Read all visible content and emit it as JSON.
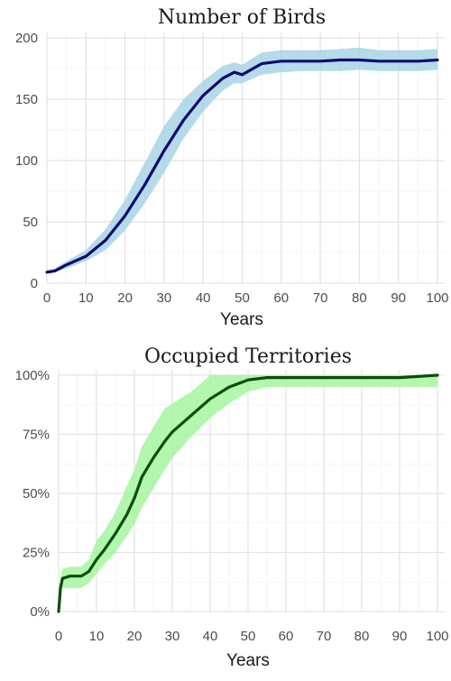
{
  "chart_data": [
    {
      "type": "line",
      "title": "Number of Birds",
      "xlabel": "Years",
      "ylabel": "",
      "xlim": [
        0,
        100
      ],
      "ylim": [
        0,
        200
      ],
      "x_ticks": [
        "0",
        "10",
        "20",
        "30",
        "40",
        "50",
        "60",
        "70",
        "80",
        "90",
        "100"
      ],
      "y_ticks": [
        "0",
        "50",
        "100",
        "150",
        "200"
      ],
      "grid": true,
      "colors": {
        "line": "#0b0b6f",
        "band": "#a8d3e6"
      },
      "x": [
        0,
        2,
        5,
        10,
        15,
        20,
        25,
        30,
        35,
        40,
        45,
        48,
        50,
        55,
        60,
        65,
        70,
        75,
        80,
        85,
        90,
        95,
        100
      ],
      "mean": [
        9,
        10,
        15,
        22,
        35,
        55,
        80,
        108,
        133,
        153,
        167,
        172,
        170,
        179,
        181,
        181,
        181,
        182,
        182,
        181,
        181,
        181,
        182
      ],
      "lower": [
        8,
        9,
        12,
        18,
        27,
        43,
        65,
        90,
        118,
        140,
        157,
        163,
        163,
        170,
        172,
        173,
        173,
        173,
        174,
        173,
        173,
        173,
        174
      ],
      "upper": [
        11,
        12,
        18,
        27,
        44,
        68,
        98,
        128,
        150,
        165,
        177,
        180,
        178,
        188,
        190,
        190,
        190,
        191,
        192,
        190,
        190,
        190,
        191
      ]
    },
    {
      "type": "line",
      "title": "Occupied Territories",
      "xlabel": "Years",
      "ylabel": "",
      "xlim": [
        0,
        100
      ],
      "ylim": [
        0,
        100
      ],
      "x_ticks": [
        "0",
        "10",
        "20",
        "30",
        "40",
        "50",
        "60",
        "70",
        "80",
        "90",
        "100"
      ],
      "y_ticks": [
        "0%",
        "25%",
        "50%",
        "75%",
        "100%"
      ],
      "grid": true,
      "colors": {
        "line": "#0b4d0b",
        "band": "#a6f5a0"
      },
      "x": [
        0,
        0.5,
        1,
        3,
        6,
        8,
        10,
        12,
        15,
        18,
        20,
        22,
        25,
        28,
        30,
        35,
        40,
        45,
        50,
        55,
        60,
        70,
        80,
        90,
        100
      ],
      "mean": [
        0,
        10,
        14,
        15,
        15,
        17,
        22,
        26,
        33,
        41,
        48,
        57,
        65,
        72,
        76,
        83,
        90,
        95,
        98,
        99,
        99,
        99,
        99,
        99,
        100
      ],
      "lower": [
        0,
        8,
        10,
        10,
        10,
        12,
        16,
        20,
        25,
        32,
        37,
        44,
        52,
        60,
        65,
        74,
        82,
        88,
        93,
        95,
        95,
        95,
        95,
        95,
        95
      ],
      "upper": [
        0,
        13,
        18,
        19,
        19,
        22,
        30,
        34,
        42,
        53,
        60,
        70,
        78,
        86,
        88,
        93,
        100,
        100,
        100,
        100,
        100,
        100,
        100,
        100,
        100
      ]
    }
  ]
}
